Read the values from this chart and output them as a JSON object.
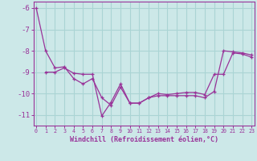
{
  "xlabel": "Windchill (Refroidissement éolien,°C)",
  "line1_x": [
    0,
    1,
    2,
    3,
    4,
    5,
    6,
    7,
    8,
    9,
    10,
    11,
    12,
    13,
    14,
    15,
    16,
    17,
    18,
    19,
    20,
    21,
    22,
    23
  ],
  "line1_y": [
    -6.0,
    -8.0,
    -8.8,
    -8.75,
    -9.3,
    -9.55,
    -9.3,
    -10.2,
    -10.55,
    -9.7,
    -10.45,
    -10.45,
    -10.2,
    -10.1,
    -10.1,
    -10.1,
    -10.1,
    -10.1,
    -10.2,
    -9.9,
    -8.0,
    -8.05,
    -8.1,
    -8.2
  ],
  "line2_x": [
    1,
    2,
    3,
    4,
    5,
    6,
    7,
    8,
    9,
    10,
    11,
    12,
    13,
    14,
    15,
    16,
    17,
    18,
    19,
    20,
    21,
    22,
    23
  ],
  "line2_y": [
    -9.0,
    -9.0,
    -8.8,
    -9.05,
    -9.1,
    -9.1,
    -11.05,
    -10.4,
    -9.55,
    -10.45,
    -10.45,
    -10.2,
    -10.0,
    -10.05,
    -10.0,
    -9.95,
    -9.95,
    -10.05,
    -9.1,
    -9.1,
    -8.1,
    -8.15,
    -8.3
  ],
  "line_color": "#993399",
  "bg_color": "#cce8e8",
  "grid_color": "#aad4d4",
  "ylim": [
    -11.5,
    -5.7
  ],
  "yticks": [
    -6,
    -7,
    -8,
    -9,
    -10,
    -11
  ],
  "xticks": [
    0,
    1,
    2,
    3,
    4,
    5,
    6,
    7,
    8,
    9,
    10,
    11,
    12,
    13,
    14,
    15,
    16,
    17,
    18,
    19,
    20,
    21,
    22,
    23
  ]
}
